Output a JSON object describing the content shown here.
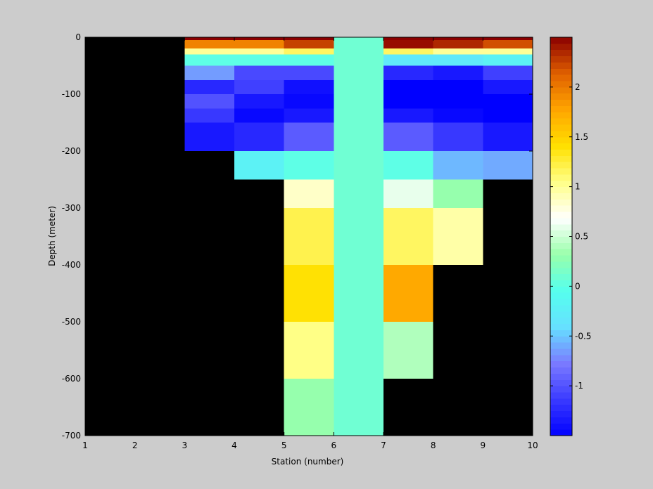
{
  "chart_data": {
    "type": "heatmap",
    "xlabel": "Station (number)",
    "ylabel": "Depth (meter)",
    "xlim": [
      1,
      10
    ],
    "ylim": [
      -700,
      0
    ],
    "x_ticks": [
      "1",
      "2",
      "3",
      "4",
      "5",
      "6",
      "7",
      "8",
      "9",
      "10"
    ],
    "y_ticks": [
      "0",
      "-100",
      "-200",
      "-300",
      "-400",
      "-500",
      "-600",
      "-700"
    ],
    "colorbar": {
      "range": [
        -1.5,
        2.5
      ],
      "ticks": [
        "2",
        "1.5",
        "1",
        "0.5",
        "0",
        "-0.5",
        "-1"
      ],
      "colormap": [
        "#0000ff",
        "#3a3aff",
        "#7a7aff",
        "#66e0ff",
        "#55ffee",
        "#99ffaa",
        "#ffffff",
        "#ffff88",
        "#ffe000",
        "#ffa500",
        "#e06000",
        "#8b0000"
      ]
    },
    "background_color": "#000000",
    "cells": [
      {
        "x0": 3,
        "x1": 4,
        "d0": 0,
        "d1": 5,
        "v": 2.5
      },
      {
        "x0": 3,
        "x1": 4,
        "d0": 5,
        "d1": 20,
        "v": 1.95
      },
      {
        "x0": 3,
        "x1": 4,
        "d0": 20,
        "d1": 30,
        "v": 1.0
      },
      {
        "x0": 3,
        "x1": 4,
        "d0": 30,
        "d1": 50,
        "v": 0.0
      },
      {
        "x0": 3,
        "x1": 4,
        "d0": 50,
        "d1": 75,
        "v": -0.65
      },
      {
        "x0": 3,
        "x1": 4,
        "d0": 75,
        "d1": 100,
        "v": -1.25
      },
      {
        "x0": 3,
        "x1": 4,
        "d0": 100,
        "d1": 125,
        "v": -1.0
      },
      {
        "x0": 3,
        "x1": 4,
        "d0": 125,
        "d1": 150,
        "v": -1.15
      },
      {
        "x0": 3,
        "x1": 4,
        "d0": 150,
        "d1": 200,
        "v": -1.35
      },
      {
        "x0": 4,
        "x1": 5,
        "d0": 0,
        "d1": 5,
        "v": 2.5
      },
      {
        "x0": 4,
        "x1": 5,
        "d0": 5,
        "d1": 20,
        "v": 1.95
      },
      {
        "x0": 4,
        "x1": 5,
        "d0": 20,
        "d1": 30,
        "v": 1.0
      },
      {
        "x0": 4,
        "x1": 5,
        "d0": 30,
        "d1": 50,
        "v": 0.0
      },
      {
        "x0": 4,
        "x1": 5,
        "d0": 50,
        "d1": 75,
        "v": -1.05
      },
      {
        "x0": 4,
        "x1": 5,
        "d0": 75,
        "d1": 100,
        "v": -1.1
      },
      {
        "x0": 4,
        "x1": 5,
        "d0": 100,
        "d1": 125,
        "v": -1.35
      },
      {
        "x0": 4,
        "x1": 5,
        "d0": 125,
        "d1": 150,
        "v": -1.45
      },
      {
        "x0": 4,
        "x1": 5,
        "d0": 150,
        "d1": 200,
        "v": -1.25
      },
      {
        "x0": 4,
        "x1": 5,
        "d0": 200,
        "d1": 250,
        "v": -0.2
      },
      {
        "x0": 5,
        "x1": 6,
        "d0": 0,
        "d1": 5,
        "v": 2.5
      },
      {
        "x0": 5,
        "x1": 6,
        "d0": 5,
        "d1": 20,
        "v": 2.25
      },
      {
        "x0": 5,
        "x1": 6,
        "d0": 20,
        "d1": 30,
        "v": 1.15
      },
      {
        "x0": 5,
        "x1": 6,
        "d0": 30,
        "d1": 50,
        "v": 0.0
      },
      {
        "x0": 5,
        "x1": 6,
        "d0": 50,
        "d1": 75,
        "v": -1.05
      },
      {
        "x0": 5,
        "x1": 6,
        "d0": 75,
        "d1": 100,
        "v": -1.4
      },
      {
        "x0": 5,
        "x1": 6,
        "d0": 100,
        "d1": 125,
        "v": -1.45
      },
      {
        "x0": 5,
        "x1": 6,
        "d0": 125,
        "d1": 150,
        "v": -1.35
      },
      {
        "x0": 5,
        "x1": 6,
        "d0": 150,
        "d1": 200,
        "v": -0.95
      },
      {
        "x0": 5,
        "x1": 6,
        "d0": 200,
        "d1": 250,
        "v": 0.0
      },
      {
        "x0": 5,
        "x1": 6,
        "d0": 250,
        "d1": 300,
        "v": 0.85
      },
      {
        "x0": 5,
        "x1": 6,
        "d0": 300,
        "d1": 400,
        "v": 1.2
      },
      {
        "x0": 5,
        "x1": 6,
        "d0": 400,
        "d1": 500,
        "v": 1.4
      },
      {
        "x0": 5,
        "x1": 6,
        "d0": 500,
        "d1": 600,
        "v": 1.05
      },
      {
        "x0": 5,
        "x1": 6,
        "d0": 600,
        "d1": 700,
        "v": 0.3
      },
      {
        "x0": 6,
        "x1": 7,
        "d0": 0,
        "d1": 700,
        "v": 0.1
      },
      {
        "x0": 7,
        "x1": 8,
        "d0": 0,
        "d1": 5,
        "v": 2.5
      },
      {
        "x0": 7,
        "x1": 8,
        "d0": 5,
        "d1": 20,
        "v": 2.45
      },
      {
        "x0": 7,
        "x1": 8,
        "d0": 20,
        "d1": 30,
        "v": 1.15
      },
      {
        "x0": 7,
        "x1": 8,
        "d0": 30,
        "d1": 50,
        "v": -0.3
      },
      {
        "x0": 7,
        "x1": 8,
        "d0": 50,
        "d1": 75,
        "v": -1.25
      },
      {
        "x0": 7,
        "x1": 8,
        "d0": 75,
        "d1": 100,
        "v": -1.5
      },
      {
        "x0": 7,
        "x1": 8,
        "d0": 100,
        "d1": 125,
        "v": -1.5
      },
      {
        "x0": 7,
        "x1": 8,
        "d0": 125,
        "d1": 150,
        "v": -1.35
      },
      {
        "x0": 7,
        "x1": 8,
        "d0": 150,
        "d1": 200,
        "v": -0.95
      },
      {
        "x0": 7,
        "x1": 8,
        "d0": 200,
        "d1": 250,
        "v": 0.0
      },
      {
        "x0": 7,
        "x1": 8,
        "d0": 250,
        "d1": 300,
        "v": 0.6
      },
      {
        "x0": 7,
        "x1": 8,
        "d0": 300,
        "d1": 400,
        "v": 1.15
      },
      {
        "x0": 7,
        "x1": 8,
        "d0": 400,
        "d1": 500,
        "v": 1.75
      },
      {
        "x0": 7,
        "x1": 8,
        "d0": 500,
        "d1": 600,
        "v": 0.4
      },
      {
        "x0": 8,
        "x1": 9,
        "d0": 0,
        "d1": 5,
        "v": 2.5
      },
      {
        "x0": 8,
        "x1": 9,
        "d0": 5,
        "d1": 20,
        "v": 2.35
      },
      {
        "x0": 8,
        "x1": 9,
        "d0": 20,
        "d1": 30,
        "v": 1.0
      },
      {
        "x0": 8,
        "x1": 9,
        "d0": 30,
        "d1": 50,
        "v": -0.3
      },
      {
        "x0": 8,
        "x1": 9,
        "d0": 50,
        "d1": 75,
        "v": -1.35
      },
      {
        "x0": 8,
        "x1": 9,
        "d0": 75,
        "d1": 100,
        "v": -1.5
      },
      {
        "x0": 8,
        "x1": 9,
        "d0": 100,
        "d1": 125,
        "v": -1.5
      },
      {
        "x0": 8,
        "x1": 9,
        "d0": 125,
        "d1": 150,
        "v": -1.45
      },
      {
        "x0": 8,
        "x1": 9,
        "d0": 150,
        "d1": 200,
        "v": -1.15
      },
      {
        "x0": 8,
        "x1": 9,
        "d0": 200,
        "d1": 250,
        "v": -0.55
      },
      {
        "x0": 8,
        "x1": 9,
        "d0": 250,
        "d1": 300,
        "v": 0.3
      },
      {
        "x0": 8,
        "x1": 9,
        "d0": 300,
        "d1": 400,
        "v": 0.95
      },
      {
        "x0": 9,
        "x1": 10,
        "d0": 0,
        "d1": 5,
        "v": 2.5
      },
      {
        "x0": 9,
        "x1": 10,
        "d0": 5,
        "d1": 20,
        "v": 2.2
      },
      {
        "x0": 9,
        "x1": 10,
        "d0": 20,
        "d1": 30,
        "v": 1.0
      },
      {
        "x0": 9,
        "x1": 10,
        "d0": 30,
        "d1": 50,
        "v": -0.2
      },
      {
        "x0": 9,
        "x1": 10,
        "d0": 50,
        "d1": 75,
        "v": -1.1
      },
      {
        "x0": 9,
        "x1": 10,
        "d0": 75,
        "d1": 100,
        "v": -1.35
      },
      {
        "x0": 9,
        "x1": 10,
        "d0": 100,
        "d1": 125,
        "v": -1.5
      },
      {
        "x0": 9,
        "x1": 10,
        "d0": 125,
        "d1": 150,
        "v": -1.5
      },
      {
        "x0": 9,
        "x1": 10,
        "d0": 150,
        "d1": 200,
        "v": -1.35
      },
      {
        "x0": 9,
        "x1": 10,
        "d0": 200,
        "d1": 250,
        "v": -0.6
      }
    ]
  }
}
